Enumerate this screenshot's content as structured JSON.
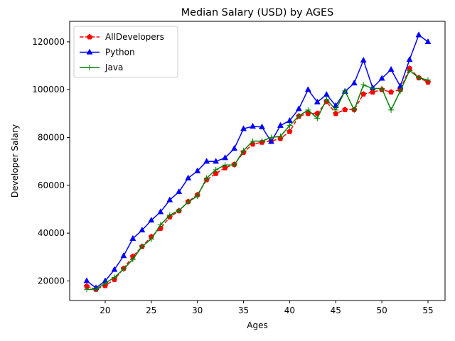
{
  "chart_data": {
    "type": "line",
    "title": "Median Salary (USD) by AGES",
    "xlabel": "Ages",
    "ylabel": "Developer Salary",
    "xlim": [
      16.15,
      56.85
    ],
    "ylim": [
      11820,
      128590
    ],
    "xticks": [
      20,
      25,
      30,
      35,
      40,
      45,
      50,
      55
    ],
    "yticks": [
      20000,
      40000,
      60000,
      80000,
      100000,
      120000
    ],
    "legend_position": "top-left",
    "grid": false,
    "x": [
      18,
      19,
      20,
      21,
      22,
      23,
      24,
      25,
      26,
      27,
      28,
      29,
      30,
      31,
      32,
      33,
      34,
      35,
      36,
      37,
      38,
      39,
      40,
      41,
      42,
      43,
      44,
      45,
      46,
      47,
      48,
      49,
      50,
      51,
      52,
      53,
      54,
      55
    ],
    "series": [
      {
        "name": "AllDevelopers",
        "color": "#ff0000",
        "line_style": "dashed",
        "marker": "pentagon",
        "values": [
          17784,
          16500,
          18012,
          20628,
          25206,
          30252,
          34368,
          38496,
          42000,
          46752,
          49320,
          53200,
          56000,
          62316,
          64928,
          67317,
          68748,
          73752,
          77232,
          78000,
          78508,
          79536,
          82488,
          88935,
          90000,
          90056,
          95000,
          90000,
          91633,
          91660,
          98150,
          98964,
          100000,
          98988,
          100000,
          108923,
          105000,
          103117
        ]
      },
      {
        "name": "Python",
        "color": "#0000ff",
        "line_style": "solid",
        "marker": "triangle",
        "values": [
          20046,
          17100,
          20000,
          24744,
          30500,
          37732,
          41247,
          45372,
          48876,
          53850,
          57287,
          63016,
          65998,
          70003,
          70000,
          71496,
          75370,
          83640,
          84666,
          84392,
          78254,
          85000,
          87038,
          91991,
          100000,
          94796,
          97962,
          93302,
          99240,
          102736,
          112285,
          100771,
          104708,
          108423,
          101407,
          112542,
          122870,
          120000
        ]
      },
      {
        "name": "Java",
        "color": "#008000",
        "line_style": "solid",
        "marker": "plus",
        "values": [
          16500,
          16500,
          19000,
          21500,
          25000,
          29000,
          34500,
          37500,
          43500,
          47500,
          49500,
          53000,
          55500,
          63000,
          66500,
          68500,
          68500,
          74500,
          78500,
          78500,
          80000,
          80500,
          85000,
          89000,
          91500,
          88000,
          96000,
          91500,
          99500,
          91500,
          102000,
          100500,
          100500,
          91500,
          99500,
          108000,
          105000,
          104000
        ]
      }
    ]
  }
}
